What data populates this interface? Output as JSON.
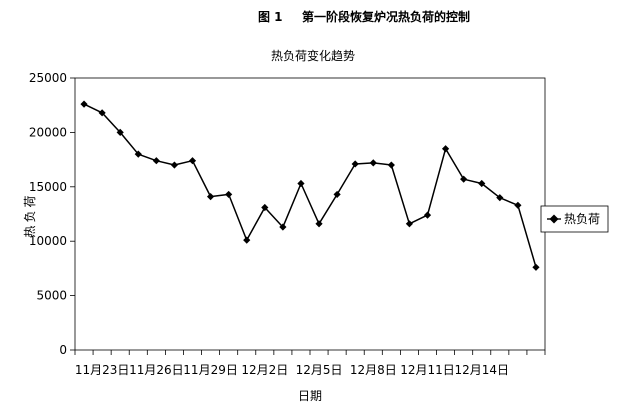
{
  "figure": {
    "number": "图 1",
    "caption": "第一阶段恢复炉况热负荷的控制"
  },
  "chart_data": {
    "type": "line",
    "title": "热负荷变化趋势",
    "xlabel": "日期",
    "ylabel": "热负荷",
    "ylim": [
      0,
      25000
    ],
    "yticks": [
      0,
      5000,
      10000,
      15000,
      20000,
      25000
    ],
    "xtick_labels": [
      {
        "index": 1,
        "label": "11月23日"
      },
      {
        "index": 4,
        "label": "11月26日"
      },
      {
        "index": 7,
        "label": "11月29日"
      },
      {
        "index": 10,
        "label": "12月2日"
      },
      {
        "index": 13,
        "label": "12月5日"
      },
      {
        "index": 16,
        "label": "12月8日"
      },
      {
        "index": 19,
        "label": "12月11日"
      },
      {
        "index": 22,
        "label": "12月14日"
      }
    ],
    "series": [
      {
        "name": "热负荷",
        "color": "#000000",
        "marker": "diamond",
        "values": [
          22600,
          21800,
          20000,
          18000,
          17400,
          17000,
          17400,
          14100,
          14300,
          10100,
          13100,
          11300,
          15300,
          11600,
          14300,
          17100,
          17200,
          17000,
          11600,
          12400,
          18500,
          15700,
          15300,
          14000,
          13300,
          7600
        ]
      }
    ],
    "grid": false,
    "legend_position": "right"
  }
}
